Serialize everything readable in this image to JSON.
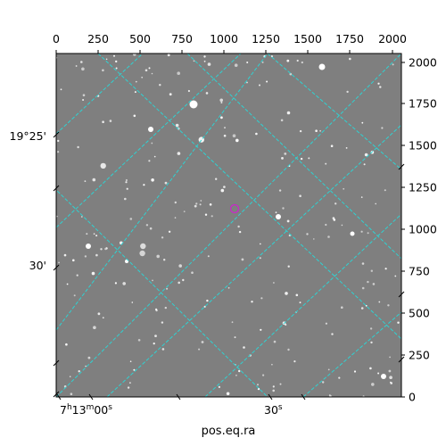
{
  "plot": {
    "x_pixel_ticks": [
      "0",
      "250",
      "500",
      "750",
      "1000",
      "1250",
      "1500",
      "1750",
      "2000"
    ],
    "y_pixel_ticks": [
      "0",
      "250",
      "500",
      "750",
      "1000",
      "1250",
      "1500",
      "1750",
      "2000"
    ],
    "ra_ticks": {
      "hours": "7",
      "minutes": "13",
      "seconds": "00",
      "seconds_2": "30"
    },
    "dec_ticks": [
      "19°25'",
      "30'"
    ],
    "xlabel": "pos.eq.ra",
    "colors": {
      "grid": "#2fd2d2",
      "marker": "#d020d0",
      "sky": "#808080"
    },
    "marker_symbol": "circle"
  }
}
